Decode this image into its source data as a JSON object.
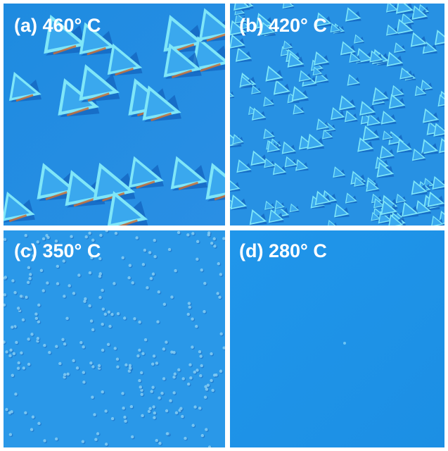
{
  "panels": [
    {
      "label": "(a) 460° C"
    },
    {
      "label": "(b) 420° C"
    },
    {
      "label": "(c) 350° C"
    },
    {
      "label": "(d) 280° C"
    }
  ]
}
